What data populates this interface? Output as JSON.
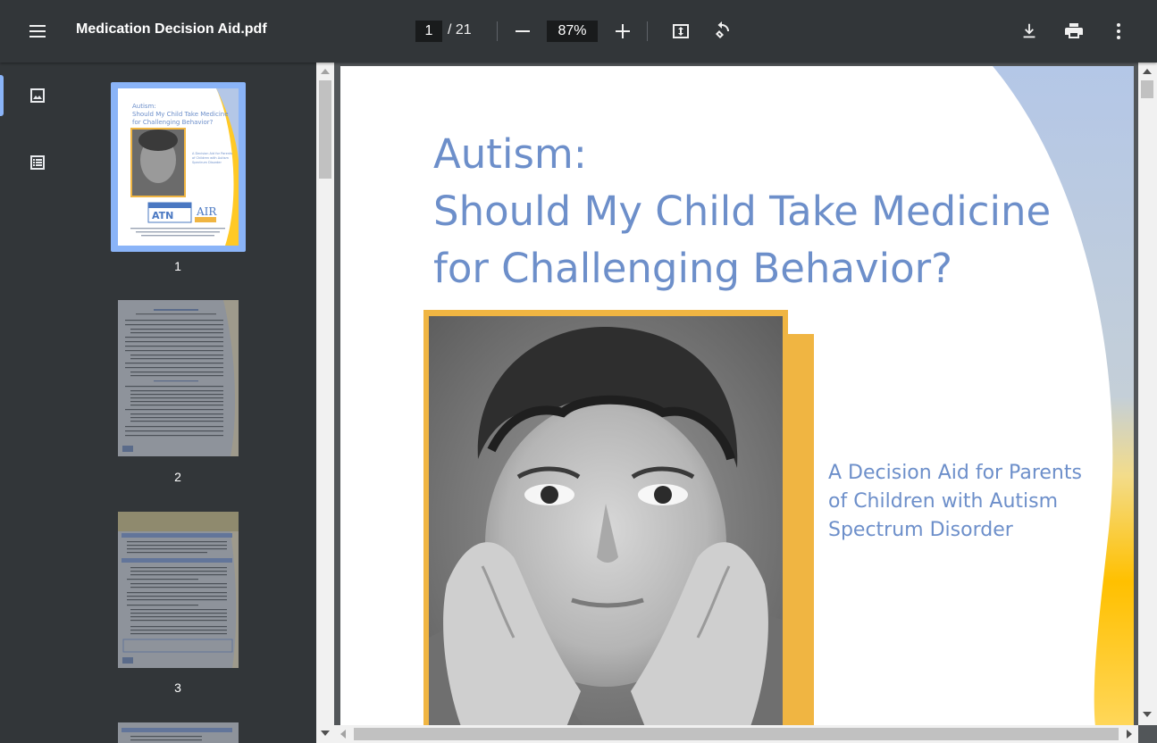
{
  "toolbar": {
    "title": "Medication Decision Aid.pdf",
    "current_page": "1",
    "total_pages": "/ 21",
    "zoom": "87%",
    "icons": [
      "menu-icon",
      "minus-icon",
      "plus-icon",
      "fit-to-page-icon",
      "rotate-icon",
      "download-icon",
      "print-icon",
      "more-vert-icon"
    ]
  },
  "sidebar": {
    "views": [
      {
        "name": "thumbnails-view-icon",
        "active": true
      },
      {
        "name": "outline-view-icon",
        "active": false
      }
    ],
    "thumbnails": [
      {
        "label": "1",
        "selected": true
      },
      {
        "label": "2",
        "selected": false
      },
      {
        "label": "3",
        "selected": false
      }
    ]
  },
  "page1": {
    "title_lines": [
      "Autism:",
      "Should My Child Take Medicine",
      "for Challenging Behavior?"
    ],
    "subtitle_lines": [
      "A Decision Aid for Parents",
      "of Children with Autism",
      "Spectrum Disorder"
    ],
    "colors": {
      "title": "#6d8fca",
      "frame": "#f0b542",
      "accent_band": "#ffc000",
      "accent_blue": "#b4c7e7"
    }
  },
  "thumb1": {
    "title_lines": [
      "Autism:",
      "Should My Child Take Medicine",
      "for Challenging Behavior?"
    ],
    "subtitle_lines": [
      "A Decision Aid for Parents",
      "of Children with Autism",
      "Spectrum Disorder"
    ],
    "logos": [
      "ATN",
      "AIR"
    ]
  }
}
